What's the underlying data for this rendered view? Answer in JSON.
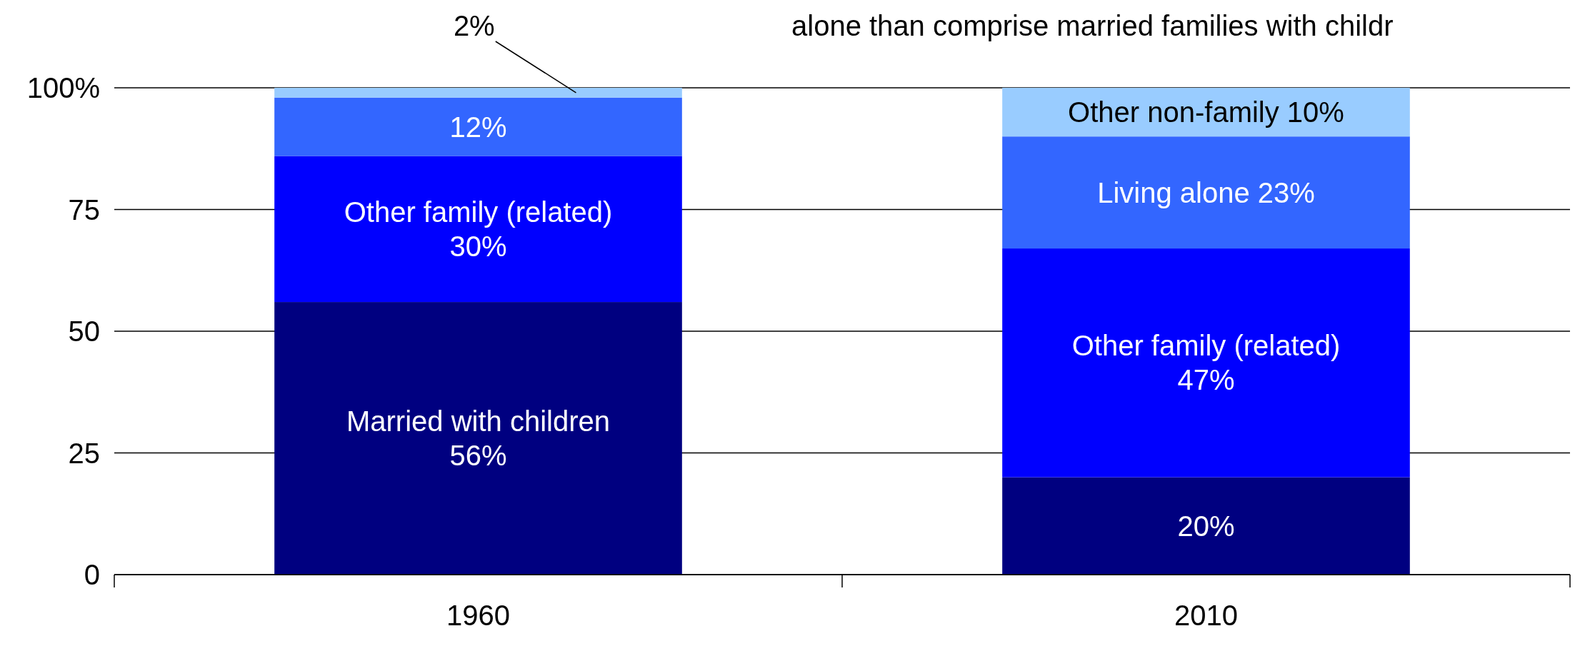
{
  "chart_data": {
    "type": "bar",
    "stacked": true,
    "categories": [
      "1960",
      "2010"
    ],
    "series": [
      {
        "color": "#000080",
        "values": [
          56,
          20
        ],
        "value_labels": [
          "Married with children\n56%",
          "20%"
        ]
      },
      {
        "color": "#0000ff",
        "values": [
          30,
          47
        ],
        "value_labels": [
          "Other family (related)\n30%",
          "Other family (related)\n47%"
        ]
      },
      {
        "color": "#3366ff",
        "values": [
          12,
          23
        ],
        "value_labels": [
          "12%",
          "Living alone 23%"
        ]
      },
      {
        "color": "#99ccff",
        "values": [
          2,
          10
        ],
        "value_labels": [
          "2%",
          "Other non-family 10%"
        ]
      }
    ],
    "ylim": [
      0,
      100
    ],
    "yticks": [
      0,
      25,
      50,
      75,
      {
        "value": 100,
        "label": "100%"
      }
    ],
    "grid": "y",
    "annotations": [
      "alone than comprise married families with childr"
    ]
  }
}
